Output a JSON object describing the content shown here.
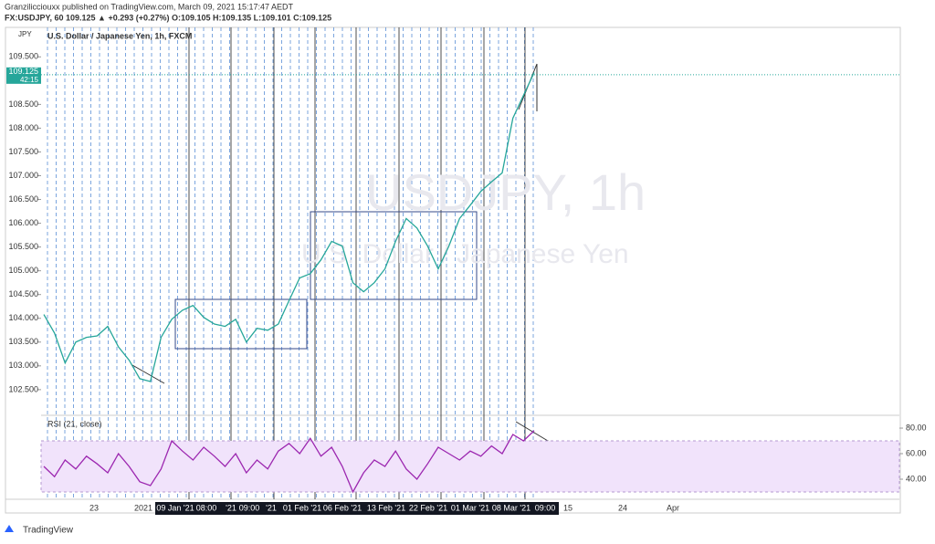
{
  "header": {
    "publisher_line": "Granzilicciouxx published on TradingView.com, March 09, 2021 15:17:47 AEDT",
    "symbol_line": "FX:USDJPY, 60  109.125  ▲ +0.293 (+0.27%)  O:109.105  H:109.135  L:109.101  C:109.125"
  },
  "footer": {
    "brand": "TradingView"
  },
  "x_labels": [
    "23",
    "2021",
    "09 Jan '21",
    "08:00",
    "'21",
    "09:00",
    "'21",
    "01 Feb '21",
    "06 Feb '21",
    "13 Feb '21",
    "22 Feb '21",
    "01 Mar '21",
    "08 Mar '21",
    "09:00",
    "15",
    "24",
    "Apr"
  ],
  "chart_data": [
    {
      "type": "line",
      "title": "U.S. Dollar / Japanese Yen, 1h, FXCM",
      "watermark": "USDJPY, 1h",
      "watermark_sub": "U.S. Dollar / Japanese Yen",
      "axis_unit": "JPY",
      "color": "#26a69a",
      "values": [
        104.08,
        103.69,
        103.06,
        103.5,
        103.6,
        103.63,
        103.83,
        103.4,
        103.12,
        102.73,
        102.67,
        103.6,
        103.98,
        104.17,
        104.27,
        104.02,
        103.88,
        103.83,
        103.98,
        103.5,
        103.79,
        103.75,
        103.88,
        104.37,
        104.85,
        104.94,
        105.23,
        105.62,
        105.52,
        104.75,
        104.56,
        104.75,
        105.04,
        105.62,
        106.1,
        105.9,
        105.52,
        105.04,
        105.52,
        106.1,
        106.38,
        106.67,
        106.87,
        107.06,
        108.21,
        108.69,
        109.17
      ],
      "last_price": 109.125,
      "last_price_label": "109.125",
      "countdown": "42:15",
      "ylim": [
        101.96,
        110.12
      ],
      "yticks": [
        {
          "value": 102.5,
          "label": "102.500"
        },
        {
          "value": 103,
          "label": "103.000"
        },
        {
          "value": 103.5,
          "label": "103.500"
        },
        {
          "value": 104,
          "label": "104.000"
        },
        {
          "value": 104.5,
          "label": "104.500"
        },
        {
          "value": 105,
          "label": "105.000"
        },
        {
          "value": 105.5,
          "label": "105.500"
        },
        {
          "value": 106,
          "label": "106.000"
        },
        {
          "value": 106.5,
          "label": "106.500"
        },
        {
          "value": 107,
          "label": "107.000"
        },
        {
          "value": 107.5,
          "label": "107.500"
        },
        {
          "value": 108,
          "label": "108.000"
        },
        {
          "value": 108.5,
          "label": "108.500"
        },
        {
          "value": 109.5,
          "label": "109.500"
        }
      ]
    },
    {
      "type": "line",
      "title": "RSI (21, close)",
      "color": "#9c27b0",
      "values": [
        50,
        42,
        55,
        48,
        58,
        52,
        45,
        60,
        50,
        38,
        35,
        48,
        70,
        62,
        55,
        65,
        58,
        50,
        60,
        45,
        55,
        48,
        62,
        68,
        60,
        72,
        58,
        65,
        50,
        30,
        45,
        55,
        50,
        62,
        48,
        40,
        52,
        65,
        60,
        55,
        62,
        58,
        66,
        60,
        75,
        70,
        78
      ],
      "band": [
        30,
        70
      ],
      "ylim": [
        25.7,
        88.6
      ],
      "yticks": [
        {
          "value": 40,
          "label": "40.00"
        },
        {
          "value": 60,
          "label": "60.00"
        },
        {
          "value": 80,
          "label": "80.00"
        }
      ]
    }
  ]
}
